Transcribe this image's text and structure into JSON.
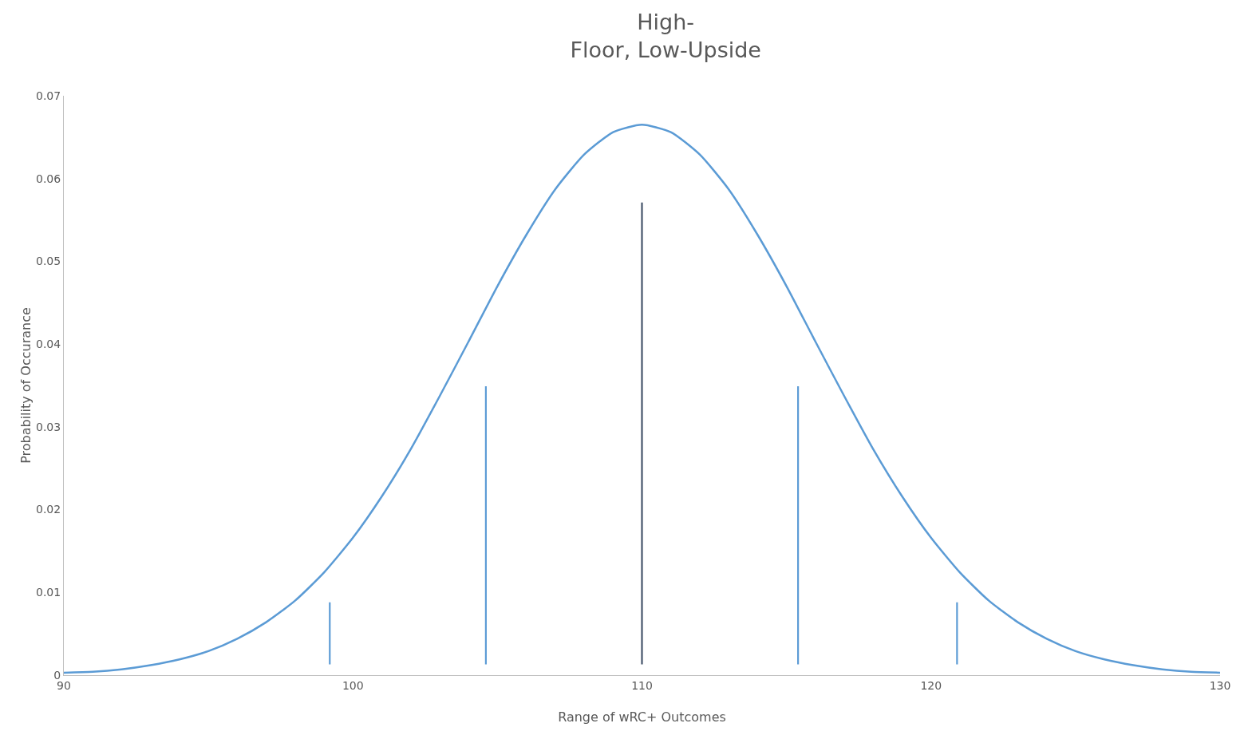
{
  "chart_data": {
    "type": "line",
    "title": "High-\nFloor, Low-Upside",
    "xlabel": "Range of wRC+ Outcomes",
    "ylabel": "Probability of Occurance",
    "xlim": [
      90,
      130
    ],
    "xticks": [
      90,
      100,
      110,
      120,
      130
    ],
    "ylim": [
      0,
      0.07
    ],
    "yticks": [
      0,
      0.01,
      0.02,
      0.03,
      0.04,
      0.05,
      0.06,
      0.07
    ],
    "grid": false,
    "marker": "none",
    "line_style": "solid",
    "series": [
      {
        "color": "#5b9bd5",
        "x": [
          90,
          91,
          92,
          93,
          94,
          95,
          96,
          97,
          98,
          99,
          100,
          101,
          102,
          103,
          104,
          105,
          106,
          107,
          108,
          109,
          110,
          111,
          112,
          113,
          114,
          115,
          116,
          117,
          118,
          119,
          120,
          121,
          122,
          123,
          124,
          125,
          126,
          127,
          128,
          129,
          130
        ],
        "values": [
          0.0003,
          0.0004,
          0.0007,
          0.0012,
          0.0019,
          0.0029,
          0.0044,
          0.0064,
          0.009,
          0.0124,
          0.0166,
          0.0216,
          0.0273,
          0.0337,
          0.0403,
          0.047,
          0.0532,
          0.0587,
          0.0629,
          0.0656,
          0.0665,
          0.0656,
          0.0629,
          0.0587,
          0.0532,
          0.047,
          0.0403,
          0.0337,
          0.0273,
          0.0216,
          0.0166,
          0.0124,
          0.009,
          0.0064,
          0.0044,
          0.0029,
          0.0019,
          0.0012,
          0.0007,
          0.0004,
          0.0003
        ]
      },
      {
        "type": "bar",
        "colors": [
          "#5b9bd5",
          "#5b9bd5",
          "#44546a",
          "#5b9bd5",
          "#5b9bd5"
        ],
        "x": [
          99.2,
          104.6,
          110,
          115.4,
          120.9
        ],
        "base": [
          0.0013,
          0.0013,
          0.0013,
          0.0013,
          0.0013
        ],
        "values": [
          0.0075,
          0.0336,
          0.0558,
          0.0336,
          0.0075
        ]
      }
    ]
  }
}
